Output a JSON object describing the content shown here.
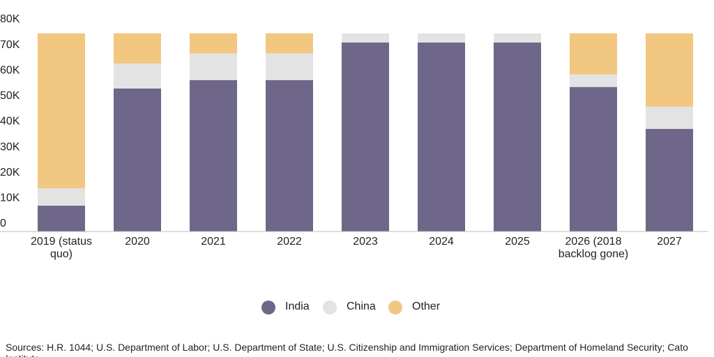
{
  "chart_data": {
    "type": "stacked_bar",
    "categories": [
      "2019 (status quo)",
      "2020",
      "2021",
      "2022",
      "2023",
      "2024",
      "2025",
      "2026 (2018 backlog gone)",
      "2027"
    ],
    "series": [
      {
        "name": "India",
        "color": "#6f6789",
        "values": [
          10.1,
          56.0,
          59.3,
          59.3,
          74.0,
          74.0,
          74.0,
          56.6,
          40.2
        ]
      },
      {
        "name": "China",
        "color": "#e3e3e3",
        "values": [
          6.8,
          9.8,
          10.4,
          10.4,
          3.6,
          3.6,
          3.6,
          4.9,
          8.7
        ]
      },
      {
        "name": "Other",
        "color": "#f2c782",
        "values": [
          60.7,
          11.8,
          7.9,
          7.9,
          0,
          0,
          0,
          16.1,
          28.7
        ]
      }
    ],
    "ylim": [
      0,
      80
    ],
    "yticks": [
      {
        "value": 0,
        "label": "0"
      },
      {
        "value": 10,
        "label": "10K"
      },
      {
        "value": 20,
        "label": "20K"
      },
      {
        "value": 30,
        "label": "30K"
      },
      {
        "value": 40,
        "label": "40K"
      },
      {
        "value": 50,
        "label": "50K"
      },
      {
        "value": 60,
        "label": "60K"
      },
      {
        "value": 70,
        "label": "70K"
      },
      {
        "value": 80,
        "label": "80K"
      }
    ],
    "source": "Sources: H.R. 1044; U.S. Department of Labor; U.S. Department of State; U.S. Citizenship and Immigration Services; Department of Homeland Security; Cato Institute."
  }
}
